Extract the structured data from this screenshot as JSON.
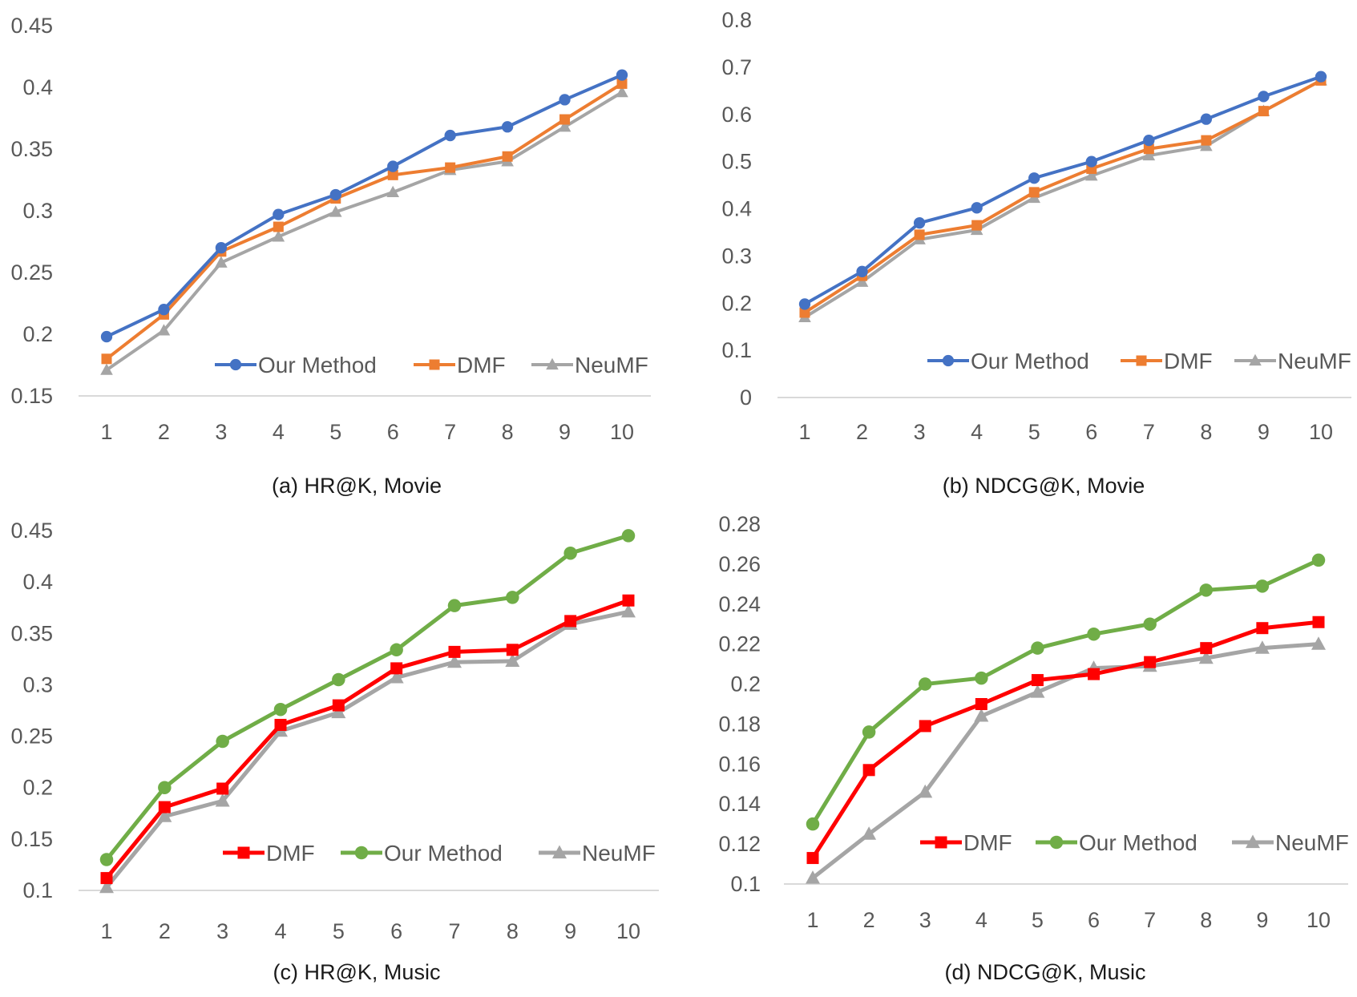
{
  "chart_data": [
    {
      "type": "line",
      "caption": "(a) HR@K, Movie",
      "x": [
        1,
        2,
        3,
        4,
        5,
        6,
        7,
        8,
        9,
        10
      ],
      "ylim": [
        0.15,
        0.45
      ],
      "yticks": [
        "0.15",
        "0.2",
        "0.25",
        "0.3",
        "0.35",
        "0.4",
        "0.45"
      ],
      "legend_position": "bottom-right",
      "grid": false,
      "series": [
        {
          "name": "Our Method",
          "color": "#4472c4",
          "marker": "circle",
          "values": [
            0.198,
            0.22,
            0.27,
            0.297,
            0.313,
            0.336,
            0.361,
            0.368,
            0.39,
            0.41
          ]
        },
        {
          "name": "DMF",
          "color": "#ed7d31",
          "marker": "square",
          "values": [
            0.18,
            0.216,
            0.267,
            0.287,
            0.31,
            0.329,
            0.335,
            0.344,
            0.374,
            0.403
          ]
        },
        {
          "name": "NeuMF",
          "color": "#a5a5a5",
          "marker": "triangle",
          "values": [
            0.171,
            0.203,
            0.258,
            0.279,
            0.299,
            0.315,
            0.333,
            0.34,
            0.368,
            0.396
          ]
        }
      ]
    },
    {
      "type": "line",
      "caption": "(b) NDCG@K, Movie",
      "x": [
        1,
        2,
        3,
        4,
        5,
        6,
        7,
        8,
        9,
        10
      ],
      "ylim": [
        0,
        0.8
      ],
      "yticks": [
        "0",
        "0.1",
        "0.2",
        "0.3",
        "0.4",
        "0.5",
        "0.6",
        "0.7",
        "0.8"
      ],
      "legend_position": "bottom-right",
      "grid": false,
      "series": [
        {
          "name": "Our Method",
          "color": "#4472c4",
          "marker": "circle",
          "values": [
            0.198,
            0.267,
            0.37,
            0.402,
            0.465,
            0.5,
            0.545,
            0.59,
            0.638,
            0.68
          ]
        },
        {
          "name": "DMF",
          "color": "#ed7d31",
          "marker": "square",
          "values": [
            0.18,
            0.258,
            0.345,
            0.365,
            0.435,
            0.485,
            0.527,
            0.545,
            0.607,
            0.672
          ]
        },
        {
          "name": "NeuMF",
          "color": "#a5a5a5",
          "marker": "triangle",
          "values": [
            0.17,
            0.245,
            0.335,
            0.355,
            0.423,
            0.47,
            0.513,
            0.533,
            0.607,
            0.672
          ]
        }
      ]
    },
    {
      "type": "line",
      "caption": "(c) HR@K, Music",
      "x": [
        1,
        2,
        3,
        4,
        5,
        6,
        7,
        8,
        9,
        10
      ],
      "ylim": [
        0.1,
        0.45
      ],
      "yticks": [
        "0.1",
        "0.15",
        "0.2",
        "0.25",
        "0.3",
        "0.35",
        "0.4",
        "0.45"
      ],
      "legend_position": "bottom-right",
      "grid": false,
      "series": [
        {
          "name": "DMF",
          "color": "#ff0000",
          "marker": "square",
          "values": [
            0.112,
            0.181,
            0.199,
            0.261,
            0.28,
            0.316,
            0.332,
            0.334,
            0.362,
            0.382
          ]
        },
        {
          "name": "Our Method",
          "color": "#70ad47",
          "marker": "circle",
          "values": [
            0.13,
            0.2,
            0.245,
            0.276,
            0.305,
            0.334,
            0.377,
            0.385,
            0.428,
            0.445
          ]
        },
        {
          "name": "NeuMF",
          "color": "#a5a5a5",
          "marker": "triangle",
          "values": [
            0.103,
            0.172,
            0.187,
            0.255,
            0.273,
            0.307,
            0.322,
            0.323,
            0.359,
            0.371
          ]
        }
      ]
    },
    {
      "type": "line",
      "caption": "(d) NDCG@K, Music",
      "x": [
        1,
        2,
        3,
        4,
        5,
        6,
        7,
        8,
        9,
        10
      ],
      "ylim": [
        0.1,
        0.28
      ],
      "yticks": [
        "0.1",
        "0.12",
        "0.14",
        "0.16",
        "0.18",
        "0.2",
        "0.22",
        "0.24",
        "0.26",
        "0.28"
      ],
      "legend_position": "bottom-right",
      "grid": false,
      "series": [
        {
          "name": "DMF",
          "color": "#ff0000",
          "marker": "square",
          "values": [
            0.113,
            0.157,
            0.179,
            0.19,
            0.202,
            0.205,
            0.211,
            0.218,
            0.228,
            0.231
          ]
        },
        {
          "name": "Our Method",
          "color": "#70ad47",
          "marker": "circle",
          "values": [
            0.13,
            0.176,
            0.2,
            0.203,
            0.218,
            0.225,
            0.23,
            0.247,
            0.249,
            0.262
          ]
        },
        {
          "name": "NeuMF",
          "color": "#a5a5a5",
          "marker": "triangle",
          "values": [
            0.103,
            0.125,
            0.146,
            0.184,
            0.196,
            0.208,
            0.209,
            0.213,
            0.218,
            0.22
          ]
        }
      ]
    }
  ]
}
